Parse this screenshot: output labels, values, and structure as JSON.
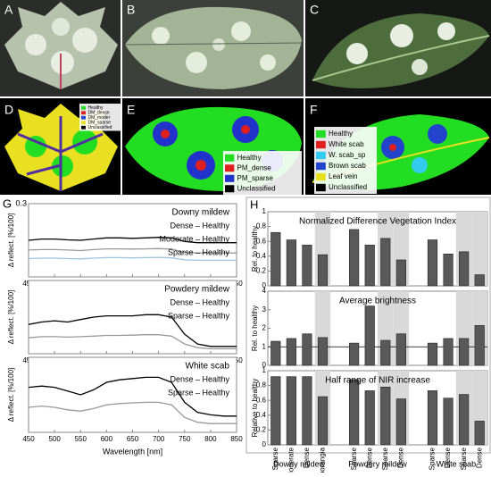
{
  "panels": [
    "A",
    "B",
    "C",
    "D",
    "E",
    "F",
    "G",
    "H"
  ],
  "legends": {
    "D": [
      {
        "name": "Healthy",
        "color": "#22dd22"
      },
      {
        "name": "DM_dense",
        "color": "#e02020"
      },
      {
        "name": "DM_moder",
        "color": "#2244cc"
      },
      {
        "name": "DM_sparse",
        "color": "#e8e020"
      },
      {
        "name": "Unclassified",
        "color": "#000000"
      }
    ],
    "E": [
      {
        "name": "Healthy",
        "color": "#22dd22"
      },
      {
        "name": "PM_dense",
        "color": "#e02020"
      },
      {
        "name": "PM_sparse",
        "color": "#2233cc"
      },
      {
        "name": "Unclassified",
        "color": "#000000"
      }
    ],
    "F": [
      {
        "name": "Healthy",
        "color": "#22dd22"
      },
      {
        "name": "White scab",
        "color": "#e02020"
      },
      {
        "name": "W. scab_sp",
        "color": "#33ccee"
      },
      {
        "name": "Brown scab",
        "color": "#2244cc"
      },
      {
        "name": "Leaf vein",
        "color": "#e8e020"
      },
      {
        "name": "Unclassified",
        "color": "#000000"
      }
    ]
  },
  "chart_data": [
    {
      "type": "line",
      "title": "Downy mildew",
      "ylabel": "Δ reflect. [%/100]",
      "x": [
        450,
        475,
        500,
        525,
        550,
        575,
        600,
        625,
        650,
        675,
        700,
        725,
        750,
        775,
        800,
        825,
        850
      ],
      "xlim": [
        450,
        850
      ],
      "xticks": [
        450,
        500,
        550,
        600,
        650,
        700,
        750,
        800,
        850
      ],
      "ylim": [
        0,
        0.3
      ],
      "yticks": [
        0.3
      ],
      "series": [
        {
          "name": "Dense – Healthy",
          "color": "#000000",
          "values": [
            0.15,
            0.155,
            0.155,
            0.152,
            0.15,
            0.155,
            0.16,
            0.16,
            0.158,
            0.16,
            0.162,
            0.16,
            0.145,
            0.14,
            0.14,
            0.14,
            0.14
          ]
        },
        {
          "name": "Moderate – Healthy",
          "color": "#999999",
          "values": [
            0.11,
            0.112,
            0.112,
            0.11,
            0.108,
            0.112,
            0.115,
            0.115,
            0.114,
            0.115,
            0.116,
            0.114,
            0.1,
            0.098,
            0.098,
            0.098,
            0.098
          ]
        },
        {
          "name": "Sparse – Healthy",
          "color": "#9cc3e0",
          "values": [
            0.075,
            0.077,
            0.077,
            0.075,
            0.074,
            0.077,
            0.079,
            0.079,
            0.078,
            0.079,
            0.08,
            0.078,
            0.07,
            0.068,
            0.068,
            0.068,
            0.068
          ]
        }
      ]
    },
    {
      "type": "line",
      "title": "Powdery mildew",
      "ylabel": "Δ reflect. [%/100]",
      "x": [
        450,
        475,
        500,
        525,
        550,
        575,
        600,
        625,
        650,
        675,
        700,
        725,
        750,
        775,
        800,
        825,
        850
      ],
      "xlim": [
        450,
        850
      ],
      "xticks": [
        450,
        500,
        550,
        600,
        650,
        700,
        750,
        800,
        850
      ],
      "ylim": [
        0,
        0.3
      ],
      "yticks": [],
      "series": [
        {
          "name": "Dense – Healthy",
          "color": "#000000",
          "values": [
            0.12,
            0.13,
            0.135,
            0.13,
            0.14,
            0.15,
            0.155,
            0.155,
            0.155,
            0.16,
            0.16,
            0.15,
            0.08,
            0.04,
            0.03,
            0.03,
            0.03
          ]
        },
        {
          "name": "Sparse – Healthy",
          "color": "#999999",
          "values": [
            0.065,
            0.07,
            0.07,
            0.068,
            0.07,
            0.072,
            0.075,
            0.075,
            0.076,
            0.078,
            0.078,
            0.072,
            0.04,
            0.025,
            0.02,
            0.02,
            0.02
          ]
        }
      ]
    },
    {
      "type": "line",
      "title": "White scab",
      "ylabel": "Δ reflect.  [%/100]",
      "xlabel": "Wavelength  [nm]",
      "x": [
        450,
        475,
        500,
        525,
        550,
        575,
        600,
        625,
        650,
        675,
        700,
        725,
        750,
        775,
        800,
        825,
        850
      ],
      "xlim": [
        450,
        850
      ],
      "xticks": [
        450,
        500,
        550,
        600,
        650,
        700,
        750,
        800,
        850
      ],
      "ylim": [
        0,
        0.3
      ],
      "yticks": [],
      "series": [
        {
          "name": "Dense – Healthy",
          "color": "#000000",
          "values": [
            0.18,
            0.185,
            0.18,
            0.165,
            0.15,
            0.17,
            0.2,
            0.21,
            0.215,
            0.22,
            0.22,
            0.2,
            0.12,
            0.08,
            0.07,
            0.065,
            0.065
          ]
        },
        {
          "name": "Sparse – Healthy",
          "color": "#999999",
          "values": [
            0.1,
            0.105,
            0.1,
            0.09,
            0.085,
            0.095,
            0.11,
            0.115,
            0.118,
            0.12,
            0.12,
            0.11,
            0.06,
            0.04,
            0.035,
            0.035,
            0.035
          ]
        }
      ]
    },
    {
      "type": "bar",
      "title": "Normalized Difference Vegetation Index",
      "ylabel": "Rel. to healthy",
      "color": "#595959",
      "values": [
        0.72,
        0.62,
        0.55,
        0.42,
        0.76,
        0.55,
        0.64,
        0.35,
        0.62,
        0.43,
        0.46,
        0.15
      ],
      "shaded": [
        false,
        false,
        false,
        true,
        false,
        false,
        true,
        true,
        false,
        false,
        true,
        true
      ],
      "ylim": [
        0,
        1
      ],
      "yticks": [
        0,
        0.2,
        0.4,
        0.6,
        0.8,
        1
      ]
    },
    {
      "type": "bar",
      "title": "Average brightness",
      "ylabel": "Rel. to healthy",
      "color": "#595959",
      "values": [
        1.3,
        1.45,
        1.7,
        1.5,
        1.2,
        3.2,
        1.35,
        1.7,
        1.2,
        1.45,
        1.45,
        2.15
      ],
      "shaded": [
        false,
        false,
        false,
        true,
        false,
        false,
        true,
        true,
        false,
        false,
        true,
        true
      ],
      "ylim": [
        0,
        4
      ],
      "yticks": [
        0,
        1,
        2,
        3,
        4
      ],
      "reference_line": 1
    },
    {
      "type": "bar",
      "title": "Half range of NIR increase",
      "ylabel": "Relative to healthy",
      "color": "#595959",
      "values": [
        0.92,
        0.92,
        0.92,
        0.65,
        0.88,
        0.73,
        0.78,
        0.62,
        0.73,
        0.63,
        0.68,
        0.32
      ],
      "shaded": [
        false,
        false,
        false,
        true,
        false,
        false,
        true,
        true,
        false,
        false,
        true,
        true
      ],
      "ylim": [
        0,
        1
      ],
      "yticks": [
        0,
        0.2,
        0.4,
        0.6,
        0.8,
        1
      ],
      "groups": [
        {
          "name": "Downy mildew",
          "categories": [
            "Sparse",
            "Moderate",
            "Dense",
            "Sporangia"
          ]
        },
        {
          "name": "Powdery mildew",
          "categories": [
            "Sparse",
            "Dense",
            "Sparse",
            "Dense"
          ]
        },
        {
          "name": "White scab",
          "categories": [
            "Sparse",
            "Dense",
            "Sparse",
            "Dense"
          ]
        }
      ]
    }
  ]
}
